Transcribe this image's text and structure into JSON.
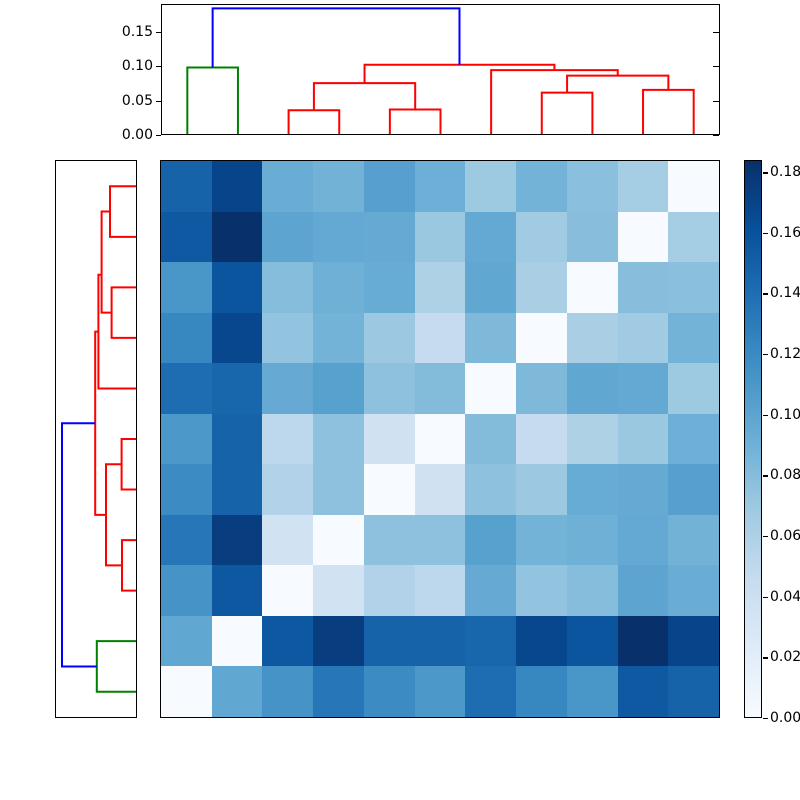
{
  "chart_data": {
    "type": "heatmap",
    "title": "",
    "description": "Hierarchically clustered distance matrix: dendrogram on top (columns), dendrogram on left (rows, reversed leaf order), 11x11 Blues heatmap and vertical colorbar",
    "colormap": "Blues",
    "vmin": 0.0,
    "vmax": 0.184,
    "grid": false,
    "heatmap": {
      "n_rows": 11,
      "n_cols": 11,
      "row_order_leaves": [
        11,
        10,
        9,
        8,
        7,
        6,
        5,
        4,
        3,
        2,
        1
      ],
      "col_order_leaves": [
        1,
        2,
        3,
        4,
        5,
        6,
        7,
        8,
        9,
        10,
        11
      ],
      "values": [
        [
          0.148,
          0.17,
          0.093,
          0.089,
          0.104,
          0.091,
          0.069,
          0.088,
          0.078,
          0.065,
          0.0
        ],
        [
          0.155,
          0.184,
          0.1,
          0.096,
          0.095,
          0.071,
          0.096,
          0.067,
          0.079,
          0.0,
          0.065
        ],
        [
          0.111,
          0.158,
          0.08,
          0.09,
          0.094,
          0.06,
          0.098,
          0.062,
          0.0,
          0.079,
          0.078
        ],
        [
          0.123,
          0.168,
          0.074,
          0.088,
          0.07,
          0.046,
          0.083,
          0.0,
          0.062,
          0.067,
          0.088
        ],
        [
          0.141,
          0.146,
          0.095,
          0.103,
          0.076,
          0.081,
          0.0,
          0.083,
          0.098,
          0.096,
          0.069
        ],
        [
          0.11,
          0.148,
          0.051,
          0.076,
          0.036,
          0.0,
          0.081,
          0.046,
          0.06,
          0.071,
          0.091
        ],
        [
          0.119,
          0.148,
          0.058,
          0.076,
          0.0,
          0.036,
          0.076,
          0.07,
          0.094,
          0.095,
          0.104
        ],
        [
          0.134,
          0.174,
          0.035,
          0.0,
          0.076,
          0.076,
          0.103,
          0.088,
          0.09,
          0.096,
          0.089
        ],
        [
          0.113,
          0.156,
          0.0,
          0.035,
          0.058,
          0.051,
          0.095,
          0.074,
          0.08,
          0.1,
          0.093
        ],
        [
          0.098,
          0.0,
          0.156,
          0.174,
          0.148,
          0.148,
          0.146,
          0.168,
          0.158,
          0.184,
          0.17
        ],
        [
          0.0,
          0.098,
          0.113,
          0.134,
          0.119,
          0.11,
          0.141,
          0.123,
          0.111,
          0.155,
          0.148
        ]
      ]
    },
    "top_dendrogram": {
      "orientation": "top",
      "pos_lim": [
        0,
        110
      ],
      "height_lim": [
        0,
        0.19
      ],
      "tick_values": [
        0.0,
        0.05,
        0.1,
        0.15
      ],
      "tick_labels": [
        "0.00",
        "0.05",
        "0.10",
        "0.15"
      ],
      "links": [
        {
          "p1": 25,
          "h1": 0,
          "p2": 35,
          "h2": 0,
          "h": 0.035,
          "color": "red"
        },
        {
          "p1": 45,
          "h1": 0,
          "p2": 55,
          "h2": 0,
          "h": 0.036,
          "color": "red"
        },
        {
          "p1": 75,
          "h1": 0,
          "p2": 85,
          "h2": 0,
          "h": 0.061,
          "color": "red"
        },
        {
          "p1": 95,
          "h1": 0,
          "p2": 105,
          "h2": 0,
          "h": 0.065,
          "color": "red"
        },
        {
          "p1": 30,
          "h1": 0.035,
          "p2": 50,
          "h2": 0.036,
          "h": 0.075,
          "color": "red"
        },
        {
          "p1": 80,
          "h1": 0.061,
          "p2": 100,
          "h2": 0.065,
          "h": 0.086,
          "color": "red"
        },
        {
          "p1": 65,
          "h1": 0,
          "p2": 90,
          "h2": 0.086,
          "h": 0.094,
          "color": "red"
        },
        {
          "p1": 40,
          "h1": 0.075,
          "p2": 77.5,
          "h2": 0.094,
          "h": 0.102,
          "color": "red"
        },
        {
          "p1": 5,
          "h1": 0,
          "p2": 15,
          "h2": 0,
          "h": 0.098,
          "color": "green"
        },
        {
          "p1": 10,
          "h1": 0.098,
          "p2": 58.75,
          "h2": 0.102,
          "h": 0.185,
          "color": "blue"
        }
      ]
    },
    "left_dendrogram": {
      "orientation": "left",
      "pos_lim": [
        0,
        110
      ],
      "height_lim": [
        0,
        0.2
      ],
      "tick_labels": [],
      "links": [
        {
          "p1": 5,
          "h1": 0,
          "p2": 15,
          "h2": 0,
          "h": 0.065,
          "color": "red"
        },
        {
          "p1": 25,
          "h1": 0,
          "p2": 35,
          "h2": 0,
          "h": 0.061,
          "color": "red"
        },
        {
          "p1": 10,
          "h1": 0.065,
          "p2": 30,
          "h2": 0.061,
          "h": 0.086,
          "color": "red"
        },
        {
          "p1": 22.5,
          "h1": 0.086,
          "p2": 45,
          "h2": 0,
          "h": 0.094,
          "color": "red"
        },
        {
          "p1": 55,
          "h1": 0,
          "p2": 65,
          "h2": 0,
          "h": 0.036,
          "color": "red"
        },
        {
          "p1": 75,
          "h1": 0,
          "p2": 85,
          "h2": 0,
          "h": 0.035,
          "color": "red"
        },
        {
          "p1": 60,
          "h1": 0.036,
          "p2": 80,
          "h2": 0.035,
          "h": 0.075,
          "color": "red"
        },
        {
          "p1": 33.75,
          "h1": 0.094,
          "p2": 70,
          "h2": 0.075,
          "h": 0.102,
          "color": "red"
        },
        {
          "p1": 95,
          "h1": 0,
          "p2": 105,
          "h2": 0,
          "h": 0.098,
          "color": "green"
        },
        {
          "p1": 51.875,
          "h1": 0.102,
          "p2": 100,
          "h2": 0.098,
          "h": 0.185,
          "color": "blue"
        }
      ]
    },
    "colorbar": {
      "vmin": 0.0,
      "vmax": 0.184,
      "tick_values": [
        0.0,
        0.02,
        0.04,
        0.06,
        0.08,
        0.1,
        0.12,
        0.14,
        0.16,
        0.18
      ],
      "tick_labels": [
        "0.00",
        "0.02",
        "0.04",
        "0.06",
        "0.08",
        "0.10",
        "0.12",
        "0.14",
        "0.16",
        "0.18"
      ]
    }
  },
  "colors": {
    "background": "#ffffff",
    "axis_line": "#000000",
    "link_red": "#ff0000",
    "link_green": "#008000",
    "link_blue": "#0000ff",
    "blues_anchors": [
      [
        0.0,
        [
          247,
          251,
          255
        ]
      ],
      [
        0.125,
        [
          222,
          235,
          247
        ]
      ],
      [
        0.25,
        [
          198,
          219,
          239
        ]
      ],
      [
        0.375,
        [
          158,
          202,
          225
        ]
      ],
      [
        0.5,
        [
          107,
          174,
          214
        ]
      ],
      [
        0.625,
        [
          66,
          146,
          198
        ]
      ],
      [
        0.75,
        [
          33,
          113,
          181
        ]
      ],
      [
        0.875,
        [
          8,
          81,
          156
        ]
      ],
      [
        1.0,
        [
          8,
          48,
          107
        ]
      ]
    ]
  }
}
